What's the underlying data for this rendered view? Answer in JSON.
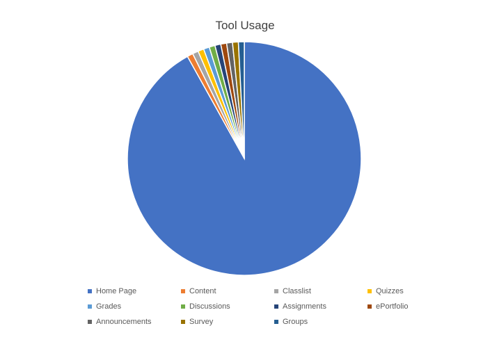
{
  "chart_data": {
    "type": "pie",
    "title": "Tool Usage",
    "legend_position": "bottom",
    "start_angle_deg": 0,
    "direction": "clockwise",
    "slices": [
      {
        "label": "Home Page",
        "value": 91.0,
        "color": "#4472C4"
      },
      {
        "label": "Content",
        "value": 0.8,
        "color": "#ED7D31"
      },
      {
        "label": "Classlist",
        "value": 0.8,
        "color": "#A5A5A5"
      },
      {
        "label": "Quizzes",
        "value": 0.8,
        "color": "#FFC000"
      },
      {
        "label": "Grades",
        "value": 0.8,
        "color": "#5B9BD5"
      },
      {
        "label": "Discussions",
        "value": 0.8,
        "color": "#70AD47"
      },
      {
        "label": "Assignments",
        "value": 0.8,
        "color": "#264478"
      },
      {
        "label": "ePortfolio",
        "value": 0.8,
        "color": "#9E480E"
      },
      {
        "label": "Announcements",
        "value": 0.8,
        "color": "#636363"
      },
      {
        "label": "Survey",
        "value": 0.8,
        "color": "#997300"
      },
      {
        "label": "Groups",
        "value": 0.8,
        "color": "#255E91"
      }
    ]
  }
}
